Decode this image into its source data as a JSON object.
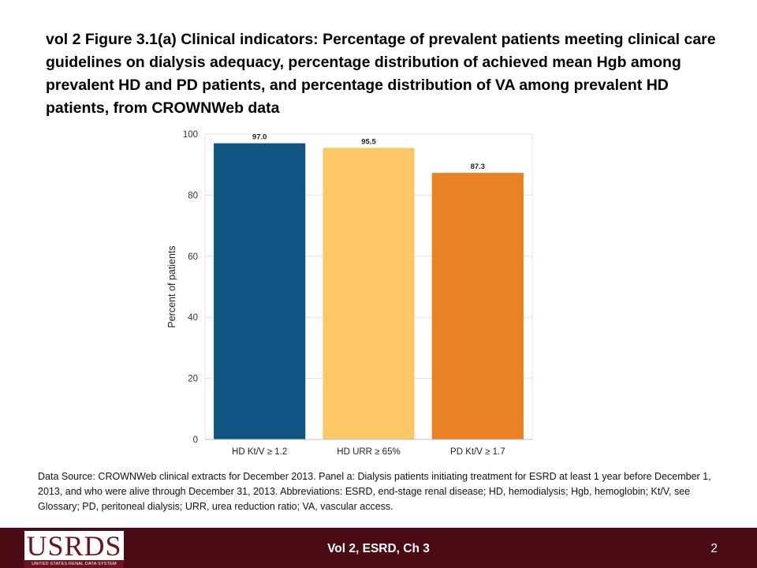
{
  "slide": {
    "title": "vol 2  Figure 3.1(a) Clinical indicators: Percentage of prevalent patients meeting clinical care guidelines on dialysis adequacy, percentage distribution of achieved mean Hgb among prevalent HD and PD patients, and percentage distribution of VA among prevalent HD patients, from CROWNWeb data",
    "source_note": "Data Source: CROWNWeb clinical extracts for December 2013. Panel a: Dialysis patients initiating treatment for ESRD at least 1 year before December 1, 2013, and who were alive through December 31, 2013. Abbreviations: ESRD, end-stage renal disease; HD, hemodialysis; Hgb, hemoglobin; Kt/V, see Glossary; PD, peritoneal dialysis; URR, urea reduction ratio; VA, vascular access."
  },
  "chart_data": {
    "type": "bar",
    "categories": [
      "HD Kt/V ≥ 1.2",
      "HD URR ≥ 65%",
      "PD Kt/V ≥ 1.7"
    ],
    "values": [
      97.0,
      95.5,
      87.3
    ],
    "data_labels": [
      "97.0",
      "95.5",
      "87.3"
    ],
    "colors": [
      "#0f5584",
      "#fdc766",
      "#ea8122"
    ],
    "ylabel": "Percent of patients",
    "xlabel": "",
    "ylim": [
      0,
      100
    ],
    "yticks": [
      0,
      20,
      40,
      60,
      80,
      100
    ],
    "grid": true,
    "legend": "none"
  },
  "footer": {
    "logo_text": "USRDS",
    "logo_subtext": "UNITED STATES RENAL DATA SYSTEM",
    "label": "Vol 2, ESRD, Ch 3",
    "page_number": "2",
    "background": "#4a0b14",
    "logo_color": "#6b1420"
  }
}
